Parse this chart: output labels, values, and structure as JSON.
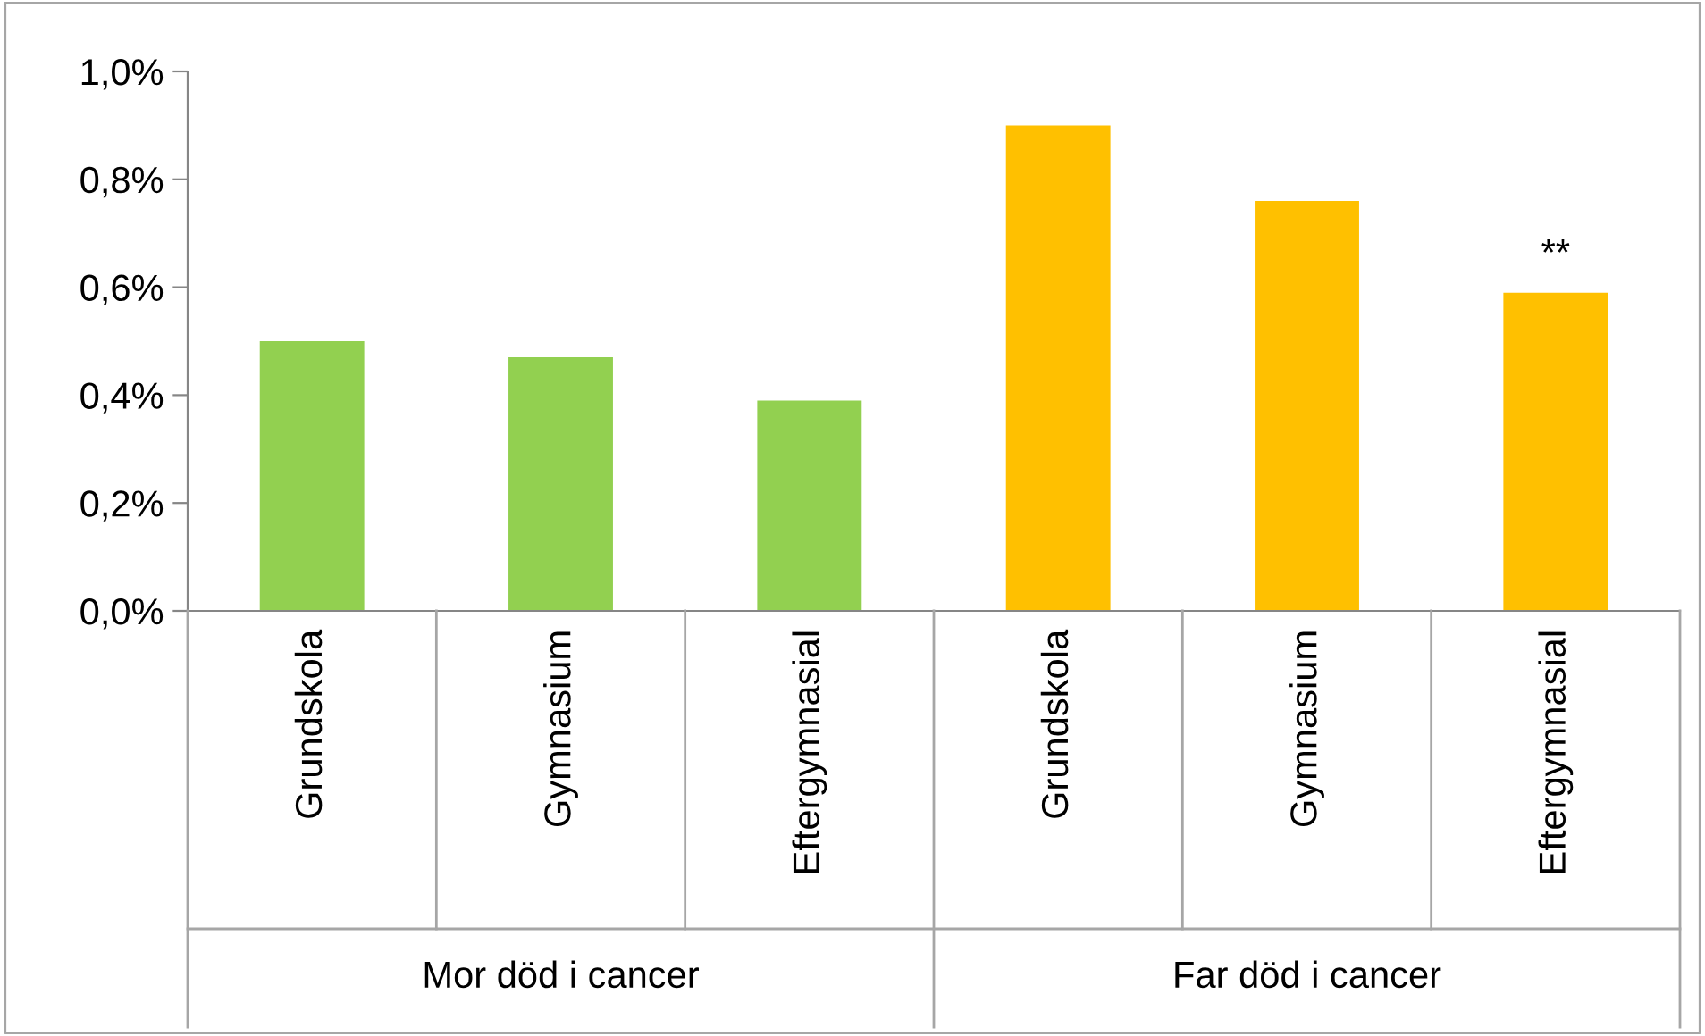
{
  "chart_data": {
    "type": "bar",
    "categories": [
      "Grundskola",
      "Gymnasium",
      "Eftergymnasial",
      "Grundskola",
      "Gymnasium",
      "Eftergymnasial"
    ],
    "values": [
      0.5,
      0.47,
      0.39,
      0.9,
      0.76,
      0.59
    ],
    "colors": [
      "#92d050",
      "#92d050",
      "#92d050",
      "#ffc000",
      "#ffc000",
      "#ffc000"
    ],
    "value_labels": [
      null,
      null,
      null,
      null,
      null,
      "**"
    ],
    "ylim": [
      0,
      1.0
    ],
    "yticks": [
      {
        "value": 0,
        "label": "0,0%"
      },
      {
        "value": 0.2,
        "label": "0,2%"
      },
      {
        "value": 0.4,
        "label": "0,4%"
      },
      {
        "value": 0.6,
        "label": "0,6%"
      },
      {
        "value": 0.8,
        "label": "0,8%"
      },
      {
        "value": 1.0,
        "label": "1,0%"
      }
    ],
    "annotations": [
      "Mor död i cancer",
      "Far död i cancer"
    ],
    "grid": false,
    "legend": false
  }
}
